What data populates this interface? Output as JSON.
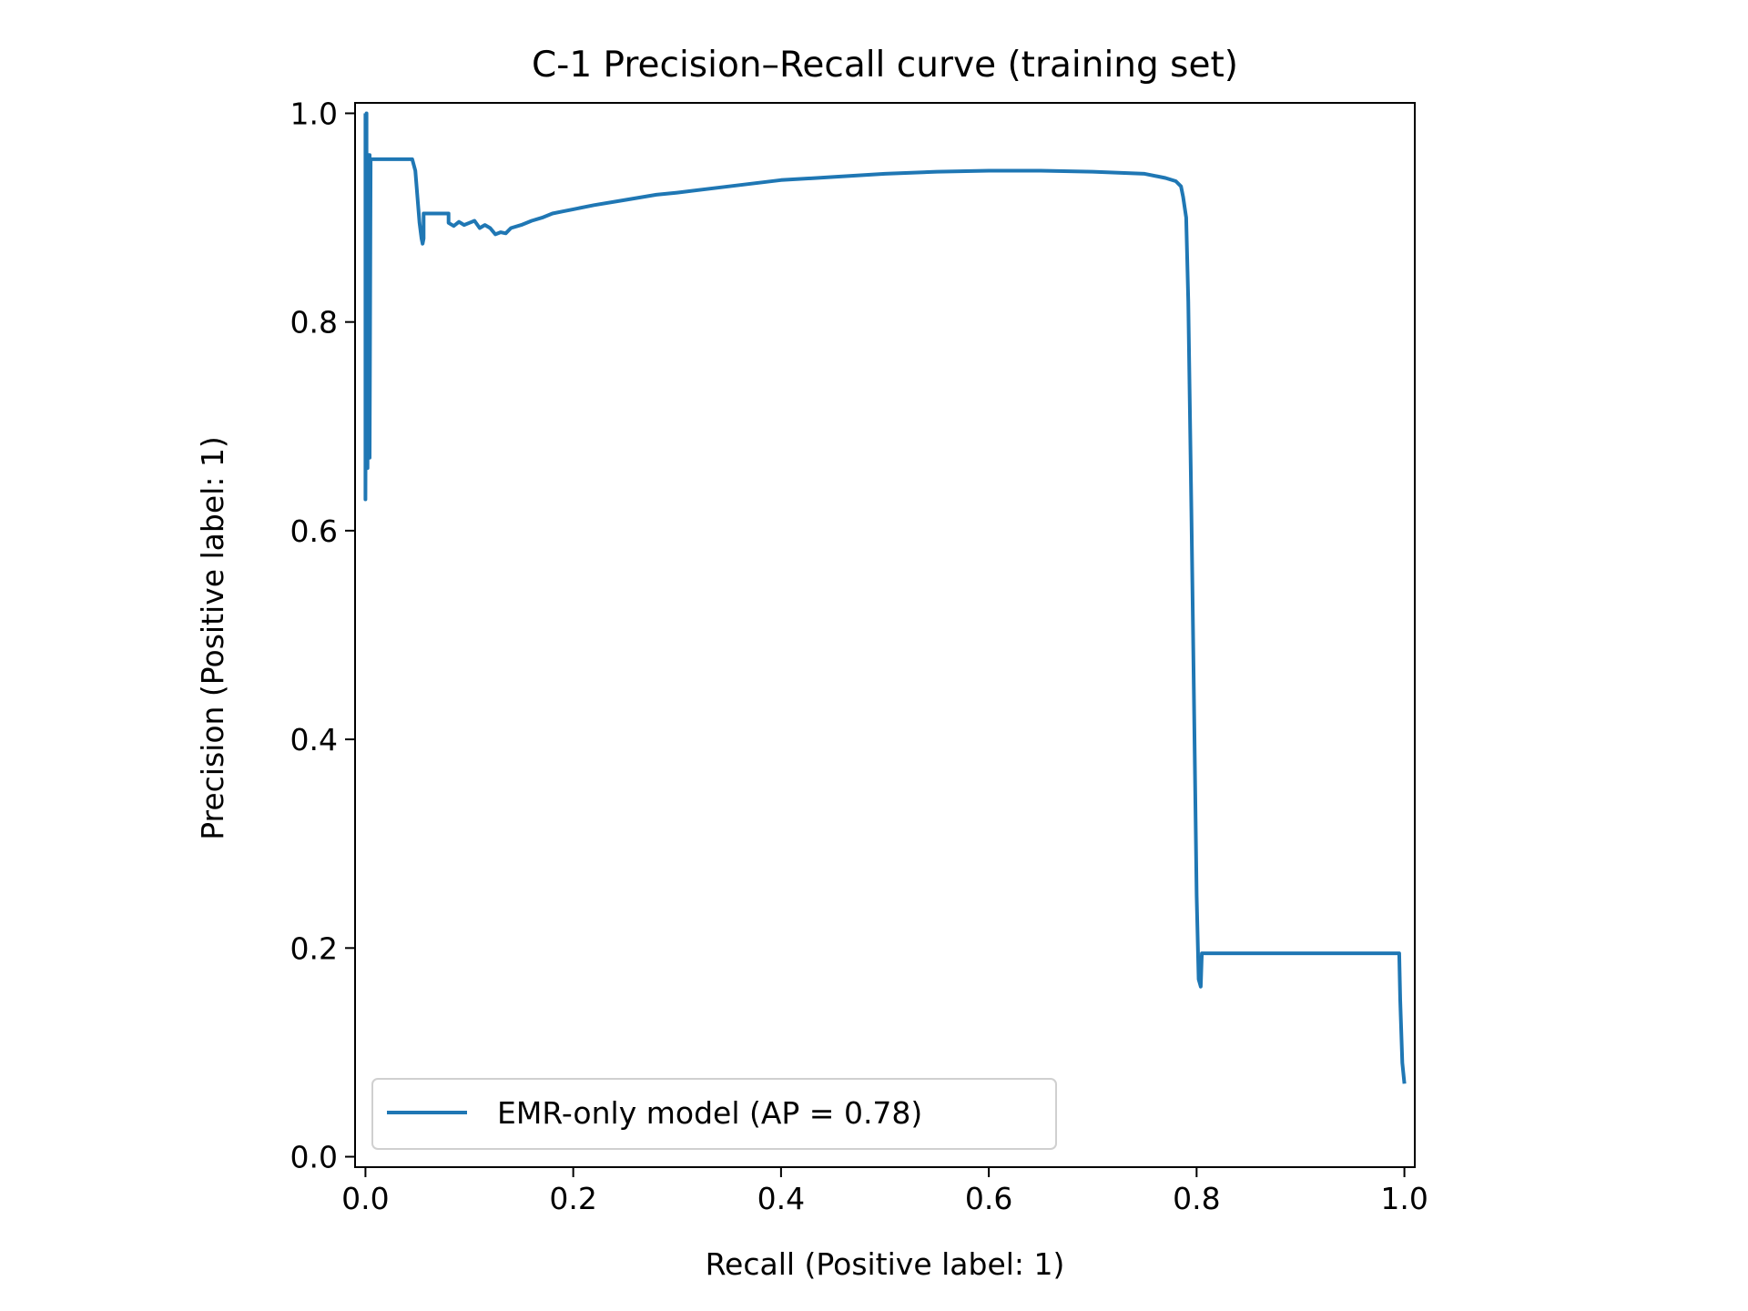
{
  "chart_data": {
    "type": "line",
    "title": "C-1  Precision–Recall curve  (training set)",
    "xlabel": "Recall (Positive label: 1)",
    "ylabel": "Precision (Positive label: 1)",
    "xlim": [
      -0.01,
      1.01
    ],
    "ylim": [
      -0.01,
      1.01
    ],
    "xticks": [
      0.0,
      0.2,
      0.4,
      0.6,
      0.8,
      1.0
    ],
    "xtick_labels": [
      "0.0",
      "0.2",
      "0.4",
      "0.6",
      "0.8",
      "1.0"
    ],
    "yticks": [
      0.0,
      0.2,
      0.4,
      0.6,
      0.8,
      1.0
    ],
    "ytick_labels": [
      "0.0",
      "0.2",
      "0.4",
      "0.6",
      "0.8",
      "1.0"
    ],
    "grid": false,
    "legend_position": "lower-left",
    "series": [
      {
        "name": "EMR-only model (AP = 0.78)",
        "color": "#1f77b4",
        "x": [
          0.0,
          0.0,
          0.001,
          0.001,
          0.002,
          0.002,
          0.003,
          0.003,
          0.004,
          0.004,
          0.005,
          0.01,
          0.02,
          0.03,
          0.045,
          0.048,
          0.05,
          0.052,
          0.054,
          0.055,
          0.056,
          0.056,
          0.06,
          0.07,
          0.08,
          0.08,
          0.085,
          0.09,
          0.095,
          0.1,
          0.105,
          0.11,
          0.115,
          0.12,
          0.125,
          0.13,
          0.135,
          0.14,
          0.15,
          0.16,
          0.17,
          0.18,
          0.19,
          0.2,
          0.22,
          0.25,
          0.28,
          0.3,
          0.35,
          0.4,
          0.45,
          0.5,
          0.55,
          0.6,
          0.65,
          0.7,
          0.75,
          0.77,
          0.78,
          0.785,
          0.787,
          0.79,
          0.792,
          0.795,
          0.8,
          0.802,
          0.804,
          0.805,
          0.82,
          0.9,
          0.995,
          0.996,
          0.998,
          1.0
        ],
        "y": [
          1.0,
          0.63,
          1.0,
          0.7,
          0.96,
          0.66,
          0.96,
          0.71,
          0.96,
          0.67,
          0.956,
          0.956,
          0.956,
          0.956,
          0.956,
          0.945,
          0.92,
          0.895,
          0.88,
          0.875,
          0.88,
          0.904,
          0.904,
          0.904,
          0.904,
          0.895,
          0.892,
          0.896,
          0.893,
          0.895,
          0.897,
          0.89,
          0.893,
          0.89,
          0.884,
          0.886,
          0.885,
          0.89,
          0.893,
          0.897,
          0.9,
          0.904,
          0.906,
          0.908,
          0.912,
          0.917,
          0.922,
          0.924,
          0.93,
          0.936,
          0.939,
          0.942,
          0.944,
          0.945,
          0.945,
          0.944,
          0.942,
          0.938,
          0.935,
          0.93,
          0.92,
          0.9,
          0.82,
          0.62,
          0.25,
          0.17,
          0.163,
          0.195,
          0.195,
          0.195,
          0.195,
          0.15,
          0.09,
          0.07
        ]
      }
    ]
  }
}
